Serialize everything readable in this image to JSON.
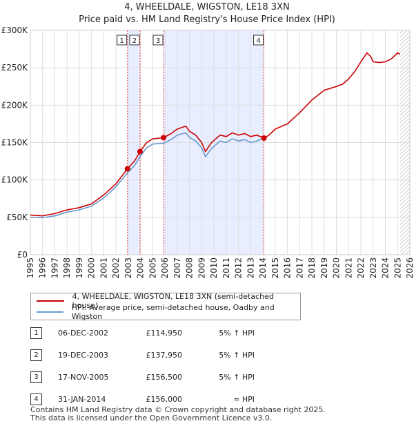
{
  "title_line1": "4, WHEELDALE, WIGSTON, LE18 3XN",
  "title_line2": "Price paid vs. HM Land Registry's House Price Index (HPI)",
  "legend": {
    "series1": "4, WHEELDALE, WIGSTON, LE18 3XN (semi-detached house)",
    "series2": "HPI: Average price, semi-detached house, Oadby and Wigston"
  },
  "colors": {
    "property": "#cc0000",
    "hpi": "#6699cc",
    "shade": "#e8eeff",
    "grid": "#dddddd",
    "marker_line": "#ee4444"
  },
  "sales": [
    {
      "num": "1",
      "date": "06-DEC-2002",
      "price": "£114,950",
      "hpi": "5% ↑ HPI"
    },
    {
      "num": "2",
      "date": "19-DEC-2003",
      "price": "£137,950",
      "hpi": "5% ↑ HPI"
    },
    {
      "num": "3",
      "date": "17-NOV-2005",
      "price": "£156,500",
      "hpi": "5% ↑ HPI"
    },
    {
      "num": "4",
      "date": "31-JAN-2014",
      "price": "£156,000",
      "hpi": "≈ HPI"
    }
  ],
  "footer_line1": "Contains HM Land Registry data © Crown copyright and database right 2025.",
  "footer_line2": "This data is licensed under the Open Government Licence v3.0.",
  "chart_data": {
    "type": "line",
    "title": "4, WHEELDALE, WIGSTON, LE18 3XN — Price paid vs. HM Land Registry's House Price Index (HPI)",
    "xlabel": "",
    "ylabel": "",
    "xlim": [
      1995,
      2026
    ],
    "ylim": [
      0,
      300000
    ],
    "x_ticks": [
      "1995",
      "1996",
      "1997",
      "1998",
      "1999",
      "2000",
      "2001",
      "2002",
      "2003",
      "2004",
      "2005",
      "2006",
      "2007",
      "2008",
      "2009",
      "2010",
      "2011",
      "2012",
      "2013",
      "2014",
      "2015",
      "2016",
      "2017",
      "2018",
      "2019",
      "2020",
      "2021",
      "2022",
      "2023",
      "2024",
      "2025",
      "2026"
    ],
    "y_ticks": [
      {
        "value": 0,
        "label": "£0"
      },
      {
        "value": 50000,
        "label": "£50K"
      },
      {
        "value": 100000,
        "label": "£100K"
      },
      {
        "value": 150000,
        "label": "£150K"
      },
      {
        "value": 200000,
        "label": "£200K"
      },
      {
        "value": 250000,
        "label": "£250K"
      },
      {
        "value": 300000,
        "label": "£300K"
      }
    ],
    "shaded_ranges": [
      [
        2002.93,
        2003.96
      ],
      [
        2005.88,
        2014.08
      ]
    ],
    "future_hatch_from": 2025.2,
    "markers": [
      {
        "label": "1",
        "x": 2002.93,
        "y": 114950
      },
      {
        "label": "2",
        "x": 2003.96,
        "y": 137950
      },
      {
        "label": "3",
        "x": 2005.88,
        "y": 156500
      },
      {
        "label": "4",
        "x": 2014.08,
        "y": 156000
      }
    ],
    "series": [
      {
        "name": "4, WHEELDALE, WIGSTON, LE18 3XN (semi-detached house)",
        "x": [
          1995,
          1996,
          1997,
          1998,
          1999,
          2000,
          2001,
          2002,
          2002.93,
          2003.5,
          2003.96,
          2004.5,
          2005,
          2005.88,
          2006.5,
          2007,
          2007.7,
          2008,
          2008.5,
          2009,
          2009.3,
          2009.8,
          2010.5,
          2011,
          2011.5,
          2012,
          2012.5,
          2013,
          2013.5,
          2014.08,
          2014.5,
          2015,
          2016,
          2017,
          2018,
          2019,
          2020,
          2020.5,
          2021,
          2021.5,
          2022,
          2022.5,
          2022.8,
          2023,
          2023.5,
          2024,
          2024.5,
          2025,
          2025.2
        ],
        "values": [
          53000,
          52000,
          55000,
          60000,
          63000,
          68000,
          80000,
          95000,
          114950,
          125000,
          137950,
          150000,
          155000,
          156500,
          162000,
          168000,
          172000,
          165000,
          160000,
          150000,
          138000,
          150000,
          160000,
          158000,
          163000,
          160000,
          162000,
          158000,
          160000,
          156000,
          160000,
          168000,
          175000,
          190000,
          207000,
          220000,
          225000,
          228000,
          235000,
          245000,
          258000,
          270000,
          265000,
          258000,
          257000,
          258000,
          262000,
          270000,
          268000
        ]
      },
      {
        "name": "HPI: Average price, semi-detached house, Oadby and Wigston",
        "x": [
          1995,
          1996,
          1997,
          1998,
          1999,
          2000,
          2001,
          2002,
          2002.93,
          2003.5,
          2003.96,
          2004.5,
          2005,
          2005.88,
          2006.5,
          2007,
          2007.7,
          2008,
          2008.5,
          2009,
          2009.3,
          2009.8,
          2010.5,
          2011,
          2011.5,
          2012,
          2012.5,
          2013,
          2013.5,
          2014.08
        ],
        "values": [
          50000,
          49500,
          52000,
          57000,
          60000,
          65000,
          76000,
          91000,
          109500,
          119000,
          131400,
          143000,
          148000,
          149000,
          154000,
          160000,
          163000,
          157000,
          152000,
          143000,
          131000,
          142000,
          152000,
          150000,
          155000,
          152000,
          154000,
          150000,
          152000,
          156000
        ]
      }
    ]
  }
}
